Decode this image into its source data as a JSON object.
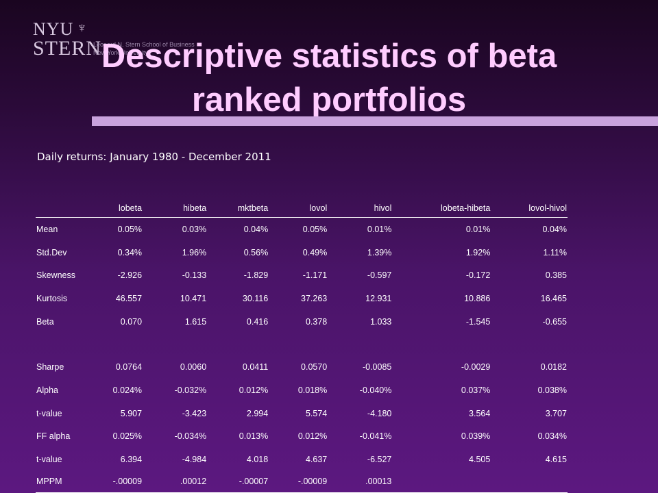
{
  "logo": {
    "nyu": "NYU",
    "stern": "STERN",
    "sub1": "Leonard N. Stern School of Business",
    "sub2": "New York University"
  },
  "title_line1": "Descriptive statistics of beta",
  "title_line2": "ranked portfolios",
  "subtitle": "Daily returns: January 1980 - December 2011",
  "table": {
    "columns": [
      "",
      "lobeta",
      "hibeta",
      "mktbeta",
      "lovol",
      "hivol",
      "lobeta-hibeta",
      "lovol-hivol"
    ],
    "rows": [
      [
        "Mean",
        "0.05%",
        "0.03%",
        "0.04%",
        "0.05%",
        "0.01%",
        "0.01%",
        "0.04%"
      ],
      [
        "Std.Dev",
        "0.34%",
        "1.96%",
        "0.56%",
        "0.49%",
        "1.39%",
        "1.92%",
        "1.11%"
      ],
      [
        "Skewness",
        "-2.926",
        "-0.133",
        "-1.829",
        "-1.171",
        "-0.597",
        "-0.172",
        "0.385"
      ],
      [
        "Kurtosis",
        "46.557",
        "10.471",
        "30.116",
        "37.263",
        "12.931",
        "10.886",
        "16.465"
      ],
      [
        "Beta",
        "0.070",
        "1.615",
        "0.416",
        "0.378",
        "1.033",
        "-1.545",
        "-0.655"
      ],
      [
        "",
        "",
        "",
        "",
        "",
        "",
        "",
        ""
      ],
      [
        "Sharpe",
        "0.0764",
        "0.0060",
        "0.0411",
        "0.0570",
        "-0.0085",
        "-0.0029",
        "0.0182"
      ],
      [
        "Alpha",
        "0.024%",
        "-0.032%",
        "0.012%",
        "0.018%",
        "-0.040%",
        "0.037%",
        "0.038%"
      ],
      [
        "t-value",
        "5.907",
        "-3.423",
        "2.994",
        "5.574",
        "-4.180",
        "3.564",
        "3.707"
      ],
      [
        "FF alpha",
        "0.025%",
        "-0.034%",
        "0.013%",
        "0.012%",
        "-0.041%",
        "0.039%",
        "0.034%"
      ],
      [
        "t-value",
        "6.394",
        "-4.984",
        "4.018",
        "4.637",
        "-6.527",
        "4.505",
        "4.615"
      ],
      [
        "MPPM",
        "-.00009",
        ".00012",
        "-.00007",
        "-.00009",
        ".00013",
        "",
        ""
      ]
    ]
  }
}
